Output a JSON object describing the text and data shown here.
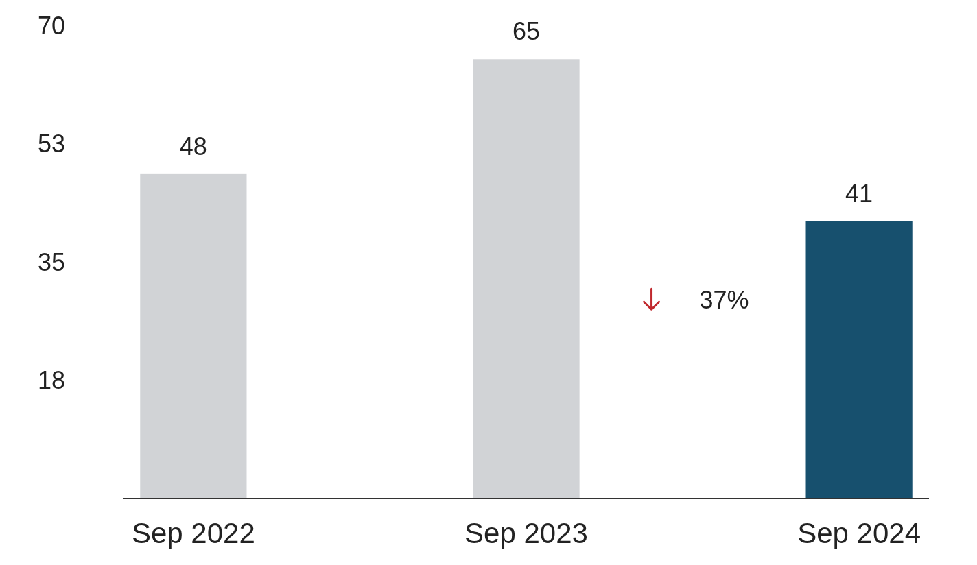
{
  "chart_data": {
    "type": "bar",
    "categories": [
      "Sep 2022",
      "Sep 2023",
      "Sep 2024"
    ],
    "values": [
      48,
      65,
      41
    ],
    "colors": [
      "#d1d3d6",
      "#d1d3d6",
      "#17506e"
    ],
    "ylim": [
      0,
      70
    ],
    "yticks": [
      {
        "value": 17.5,
        "label": "18"
      },
      35,
      {
        "value": 52.5,
        "label": "53"
      },
      70
    ],
    "data_labels": true,
    "annotations": [
      "37%"
    ]
  }
}
